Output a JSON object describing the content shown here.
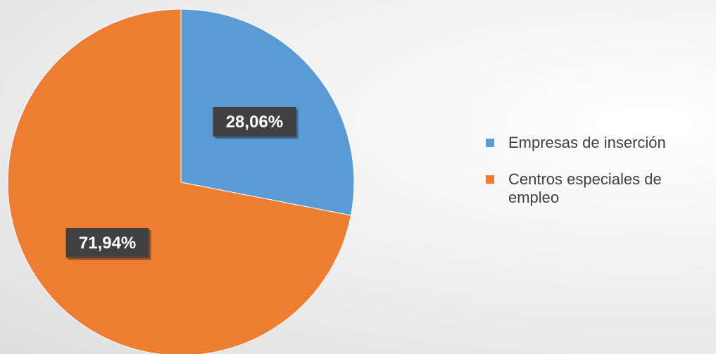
{
  "chart_data": {
    "type": "pie",
    "categories": [
      "Empresas de inserción",
      "Centros especiales de empleo"
    ],
    "values": [
      28.06,
      71.94
    ],
    "data_labels": [
      "28,06%",
      "71,94%"
    ],
    "colors": [
      "#5b9bd5",
      "#ed7d31"
    ],
    "title": "",
    "legend_position": "right"
  }
}
